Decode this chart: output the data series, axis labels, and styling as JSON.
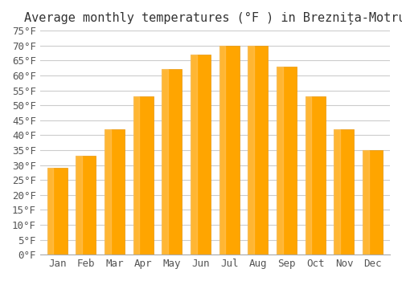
{
  "title": "Average monthly temperatures (°F ) in Breznița-Motru",
  "months": [
    "Jan",
    "Feb",
    "Mar",
    "Apr",
    "May",
    "Jun",
    "Jul",
    "Aug",
    "Sep",
    "Oct",
    "Nov",
    "Dec"
  ],
  "values": [
    29,
    33,
    42,
    53,
    62,
    67,
    70,
    70,
    63,
    53,
    42,
    35
  ],
  "bar_color": "#FFA500",
  "bar_edge_color": "#E8960A",
  "background_color": "#ffffff",
  "grid_color": "#cccccc",
  "ylim": [
    0,
    75
  ],
  "yticks": [
    0,
    5,
    10,
    15,
    20,
    25,
    30,
    35,
    40,
    45,
    50,
    55,
    60,
    65,
    70,
    75
  ],
  "title_fontsize": 11,
  "tick_fontsize": 9,
  "font_family": "monospace"
}
